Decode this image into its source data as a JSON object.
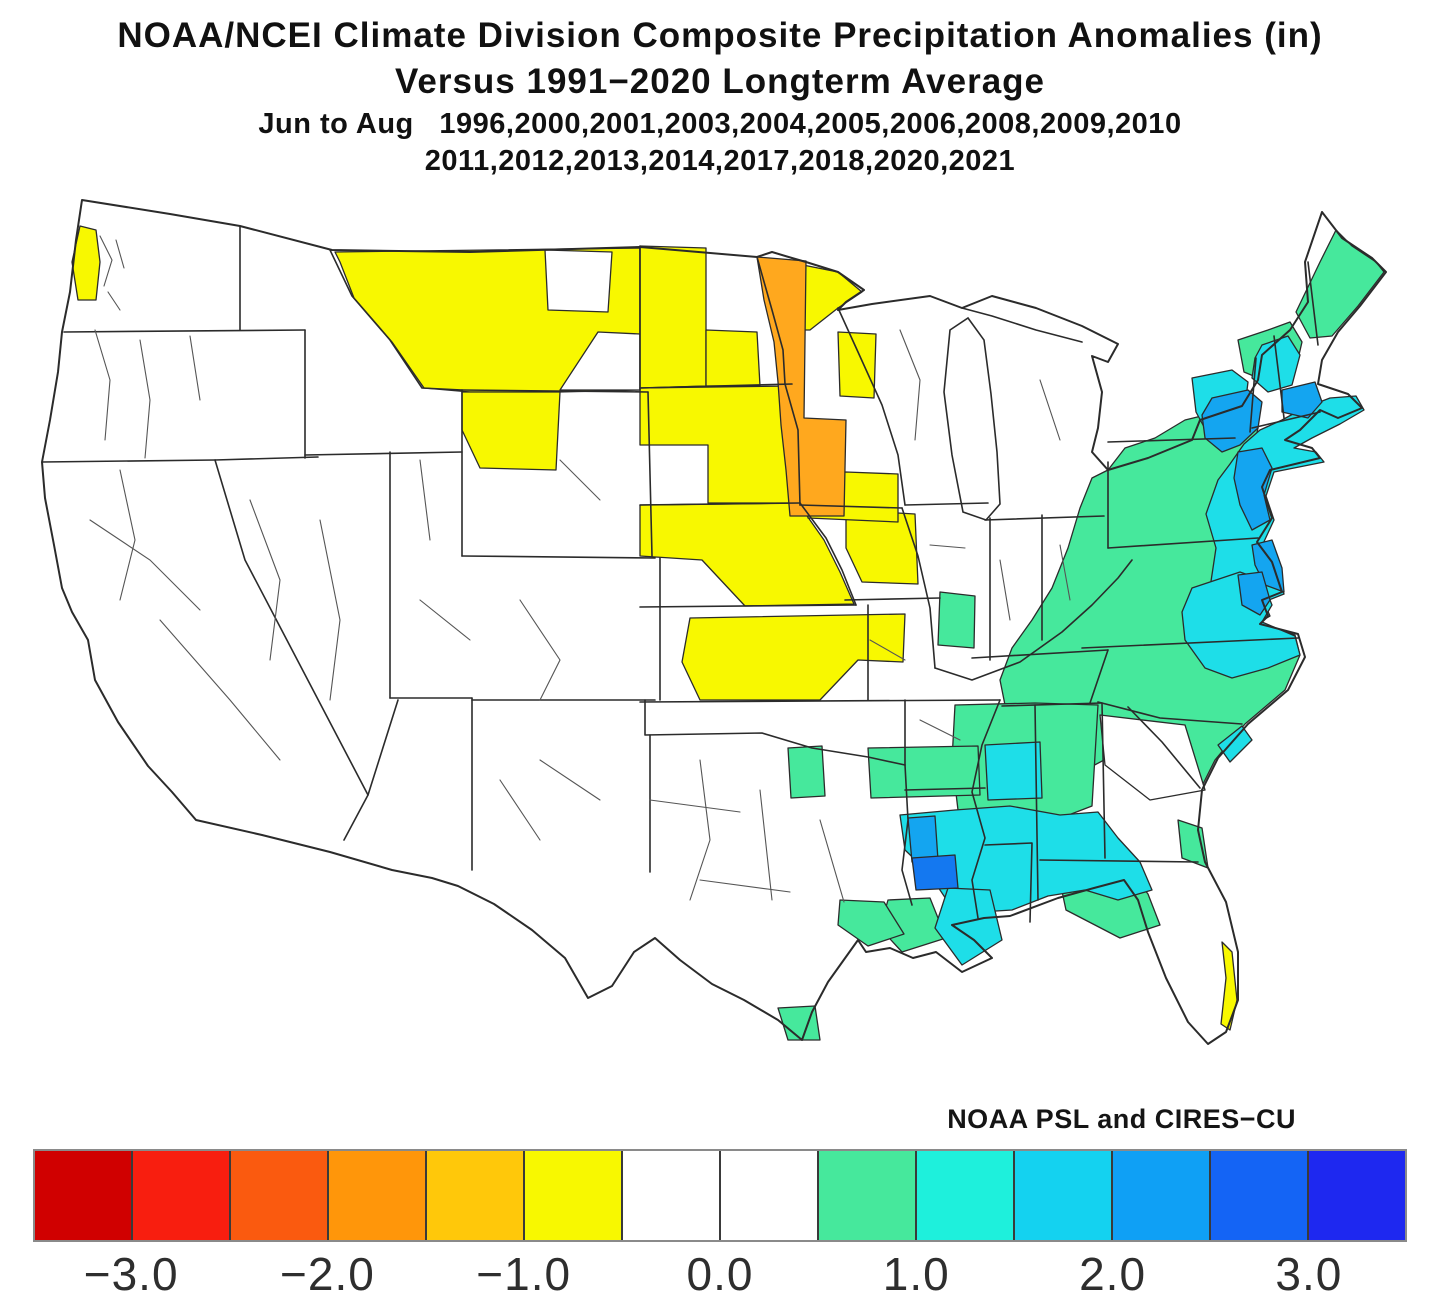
{
  "title": {
    "line1": "NOAA/NCEI Climate Division Composite Precipitation Anomalies (in)",
    "line2": "Versus 1991−2020 Longterm Average",
    "line3": "Jun to Aug   1996,2000,2001,2003,2004,2005,2006,2008,2009,2010",
    "line4": "2011,2012,2013,2014,2017,2018,2020,2021"
  },
  "attribution": "NOAA PSL and CIRES−CU",
  "chart_data": {
    "type": "choropleth-map",
    "title": "NOAA/NCEI Climate Division Composite Precipitation Anomalies (in)",
    "subtitle": "Versus 1991−2020 Longterm Average",
    "season": "Jun to Aug",
    "composite_years": [
      1996,
      2000,
      2001,
      2003,
      2004,
      2005,
      2006,
      2008,
      2009,
      2010,
      2011,
      2012,
      2013,
      2014,
      2017,
      2018,
      2020,
      2021
    ],
    "units": "inches",
    "region": "Contiguous United States (NOAA climate divisions)",
    "legend_position": "bottom",
    "colorbar": {
      "orientation": "horizontal",
      "range": [
        -3.5,
        3.5
      ],
      "ticks": [
        "−3.0",
        "−2.0",
        "−1.0",
        "0.0",
        "1.0",
        "2.0",
        "3.0"
      ],
      "tick_values": [
        -3,
        -2,
        -1,
        0,
        1,
        2,
        3
      ],
      "segment_colors": [
        "#D00000",
        "#F81E0F",
        "#FA5A0F",
        "#FF960A",
        "#FFC80A",
        "#F8F800",
        "#FFFFFF",
        "#FFFFFF",
        "#46E89C",
        "#1EF0DC",
        "#14D2F0",
        "#0FA0F5",
        "#1464F5",
        "#1E28F0"
      ]
    },
    "anomaly_regions": [
      {
        "area": "Washington Olympic coastal division",
        "sign": "dry",
        "approx_anomaly_in": -1.0
      },
      {
        "area": "Montana / North Dakota / South Dakota / Nebraska / Kansas northern plains",
        "sign": "dry",
        "approx_anomaly_in": -1.0
      },
      {
        "area": "Central Minnesota band and MN–SD border strip",
        "sign": "dry",
        "approx_anomaly_in": -1.5
      },
      {
        "area": "Northeast Wyoming",
        "sign": "dry",
        "approx_anomaly_in": -1.0
      },
      {
        "area": "Eastern Iowa / northwest Illinois",
        "sign": "dry",
        "approx_anomaly_in": -1.0
      },
      {
        "area": "Southeast Florida Atlantic coast sliver",
        "sign": "dry",
        "approx_anomaly_in": -1.0
      },
      {
        "area": "Appalachians, Mid-Atlantic and Southeast interior (NY–PA–WV–VA–NC–SC–N GA–E TN)",
        "sign": "wet",
        "approx_anomaly_in": 1.0
      },
      {
        "area": "Atlantic coastal plain (E NC, VA tidewater, Delmarva, NJ, CT-RI, E MA, coastal NH/ME)",
        "sign": "wet",
        "approx_anomaly_in": 1.5
      },
      {
        "area": "Hudson Valley / NYC / New Jersey / E Massachusetts / Chesapeake",
        "sign": "wet",
        "approx_anomaly_in": 2.0
      },
      {
        "area": "Central Gulf coast (S MS / S AL / FL panhandle)",
        "sign": "wet",
        "approx_anomaly_in": 1.5
      },
      {
        "area": "Southern Mississippi / SE Louisiana (Mobile–New Orleans area)",
        "sign": "wet",
        "approx_anomaly_in": 2.0
      },
      {
        "area": "Upper Texas coast, S Texas tip, N Louisiana / S Arkansas patches, N Florida",
        "sign": "wet",
        "approx_anomaly_in": 1.0
      }
    ]
  },
  "map_colors": {
    "dry1": "#F8F800",
    "dry2": "#FFA81E",
    "wet1": "#46E89C",
    "wet2": "#1EDEE8",
    "wet3": "#14A5F0",
    "wet4": "#1478F0",
    "land": "#FFFFFF",
    "border": "#2B2B2B"
  }
}
